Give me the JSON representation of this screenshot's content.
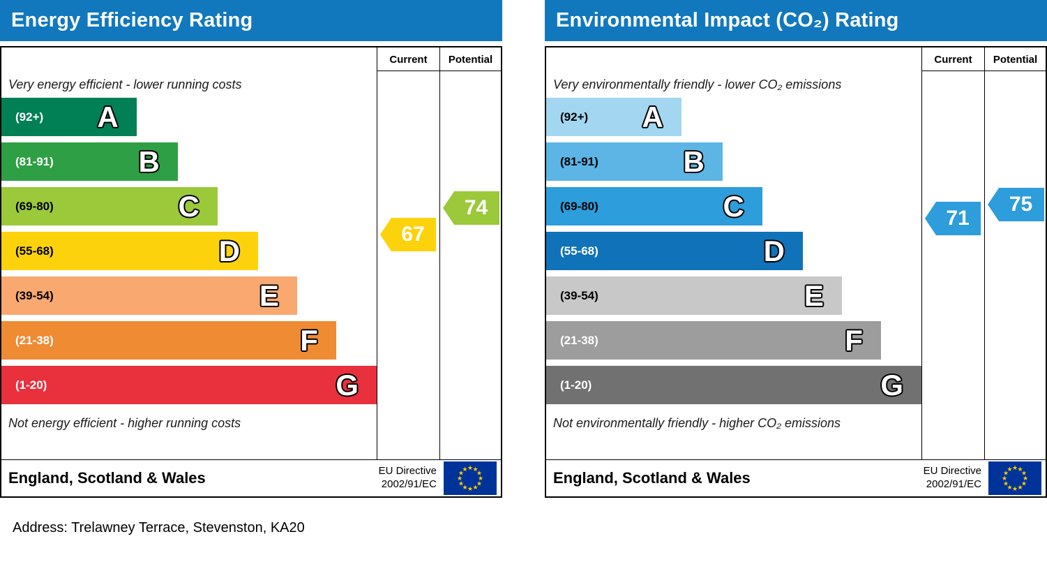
{
  "address": "Address: Trelawney Terrace, Stevenston, KA20",
  "chart_data": [
    {
      "type": "bar",
      "chart_kind": "epc-rating-band-chart",
      "title": "Energy Efficiency Rating",
      "columns": [
        "Current",
        "Potential"
      ],
      "top_caption": "Very energy efficient - lower running costs",
      "bottom_caption": "Not energy efficient - higher running costs",
      "score_range": [
        1,
        100
      ],
      "bands": [
        {
          "letter": "A",
          "range": "(92+)",
          "min": 92,
          "max": 100,
          "color": "#008054",
          "width_pct": 36,
          "range_color": "#ffffff"
        },
        {
          "letter": "B",
          "range": "(81-91)",
          "min": 81,
          "max": 91,
          "color": "#2e9f44",
          "width_pct": 47,
          "range_color": "#ffffff"
        },
        {
          "letter": "C",
          "range": "(69-80)",
          "min": 69,
          "max": 80,
          "color": "#9bc93a",
          "width_pct": 57.6,
          "range_color": "#000000"
        },
        {
          "letter": "D",
          "range": "(55-68)",
          "min": 55,
          "max": 68,
          "color": "#fcd20c",
          "width_pct": 68.4,
          "range_color": "#000000"
        },
        {
          "letter": "E",
          "range": "(39-54)",
          "min": 39,
          "max": 54,
          "color": "#f9a870",
          "width_pct": 78.8,
          "range_color": "#000000"
        },
        {
          "letter": "F",
          "range": "(21-38)",
          "min": 21,
          "max": 38,
          "color": "#ef8b33",
          "width_pct": 89.2,
          "range_color": "#ffffff"
        },
        {
          "letter": "G",
          "range": "(1-20)",
          "min": 1,
          "max": 20,
          "color": "#e9303d",
          "width_pct": 100,
          "range_color": "#ffffff"
        }
      ],
      "current": {
        "value": 67,
        "color": "#fcd20c"
      },
      "potential": {
        "value": 74,
        "color": "#9bc93a"
      },
      "footer": {
        "region": "England, Scotland & Wales",
        "directive_line1": "EU Directive",
        "directive_line2": "2002/91/EC"
      }
    },
    {
      "type": "bar",
      "chart_kind": "epc-rating-band-chart",
      "title": "Environmental Impact (CO₂) Rating",
      "columns": [
        "Current",
        "Potential"
      ],
      "top_caption": "Very environmentally friendly - lower CO₂ emissions",
      "bottom_caption": "Not environmentally friendly - higher CO₂ emissions",
      "score_range": [
        1,
        100
      ],
      "bands": [
        {
          "letter": "A",
          "range": "(92+)",
          "min": 92,
          "max": 100,
          "color": "#a3d7f1",
          "width_pct": 36,
          "range_color": "#000000"
        },
        {
          "letter": "B",
          "range": "(81-91)",
          "min": 81,
          "max": 91,
          "color": "#5cb5e5",
          "width_pct": 47,
          "range_color": "#000000"
        },
        {
          "letter": "C",
          "range": "(69-80)",
          "min": 69,
          "max": 80,
          "color": "#2d9ddb",
          "width_pct": 57.6,
          "range_color": "#000000"
        },
        {
          "letter": "D",
          "range": "(55-68)",
          "min": 55,
          "max": 68,
          "color": "#1072b9",
          "width_pct": 68.4,
          "range_color": "#ffffff"
        },
        {
          "letter": "E",
          "range": "(39-54)",
          "min": 39,
          "max": 54,
          "color": "#c8c8c8",
          "width_pct": 78.8,
          "range_color": "#000000"
        },
        {
          "letter": "F",
          "range": "(21-38)",
          "min": 21,
          "max": 38,
          "color": "#9d9d9d",
          "width_pct": 89.2,
          "range_color": "#ffffff"
        },
        {
          "letter": "G",
          "range": "(1-20)",
          "min": 1,
          "max": 20,
          "color": "#717171",
          "width_pct": 100,
          "range_color": "#ffffff"
        }
      ],
      "current": {
        "value": 71,
        "color": "#2d9ddb"
      },
      "potential": {
        "value": 75,
        "color": "#2d9ddb"
      },
      "footer": {
        "region": "England, Scotland & Wales",
        "directive_line1": "EU Directive",
        "directive_line2": "2002/91/EC"
      }
    }
  ],
  "colors": {
    "header_bg": "#1278bd",
    "flag_bg": "#003399",
    "flag_star": "#ffcc00"
  }
}
